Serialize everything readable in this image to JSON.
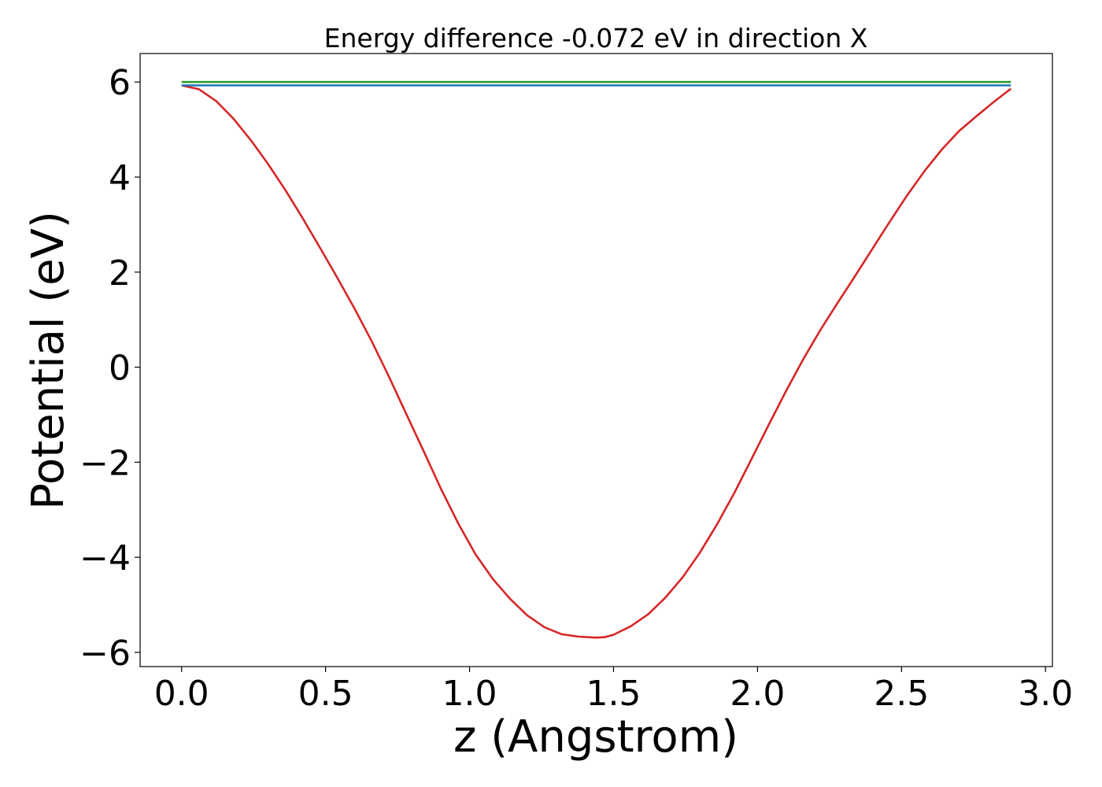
{
  "chart_data": {
    "type": "line",
    "title": "Energy difference -0.072 eV in direction X",
    "xlabel": "z (Angstrom)",
    "ylabel": "Potential (eV)",
    "xlim": [
      -0.144,
      3.024
    ],
    "ylim": [
      -6.3,
      6.6
    ],
    "x_ticks": [
      0.0,
      0.5,
      1.0,
      1.5,
      2.0,
      2.5,
      3.0
    ],
    "x_tick_labels": [
      "0.0",
      "0.5",
      "1.0",
      "1.5",
      "2.0",
      "2.5",
      "3.0"
    ],
    "y_ticks": [
      -6,
      -4,
      -2,
      0,
      2,
      4,
      6
    ],
    "y_tick_labels": [
      "−6",
      "−4",
      "−2",
      "0",
      "2",
      "4",
      "6"
    ],
    "grid": false,
    "legend": "none",
    "series": [
      {
        "color": "#d62728",
        "x": [
          0.0,
          0.06,
          0.12,
          0.18,
          0.24,
          0.3,
          0.36,
          0.42,
          0.48,
          0.54,
          0.6,
          0.66,
          0.72,
          0.78,
          0.84,
          0.9,
          0.96,
          1.02,
          1.08,
          1.14,
          1.2,
          1.26,
          1.32,
          1.38,
          1.44,
          1.47,
          1.5,
          1.56,
          1.62,
          1.68,
          1.74,
          1.8,
          1.86,
          1.92,
          1.98,
          2.04,
          2.1,
          2.16,
          2.22,
          2.28,
          2.34,
          2.4,
          2.46,
          2.52,
          2.58,
          2.64,
          2.7,
          2.76,
          2.82,
          2.88
        ],
        "y": [
          5.93,
          5.85,
          5.6,
          5.23,
          4.78,
          4.28,
          3.73,
          3.14,
          2.52,
          1.89,
          1.24,
          0.55,
          -0.2,
          -0.98,
          -1.76,
          -2.55,
          -3.28,
          -3.93,
          -4.45,
          -4.87,
          -5.22,
          -5.47,
          -5.62,
          -5.67,
          -5.69,
          -5.68,
          -5.63,
          -5.45,
          -5.2,
          -4.85,
          -4.42,
          -3.9,
          -3.3,
          -2.64,
          -1.92,
          -1.2,
          -0.49,
          0.18,
          0.8,
          1.37,
          1.93,
          2.5,
          3.07,
          3.62,
          4.13,
          4.58,
          4.97,
          5.28,
          5.58,
          5.86
        ]
      },
      {
        "color": "#2ca02c",
        "x": [
          0.0,
          2.88
        ],
        "y": [
          6.0,
          6.0
        ]
      },
      {
        "color": "#1f77b4",
        "x": [
          0.0,
          2.88
        ],
        "y": [
          5.93,
          5.93
        ]
      }
    ]
  }
}
